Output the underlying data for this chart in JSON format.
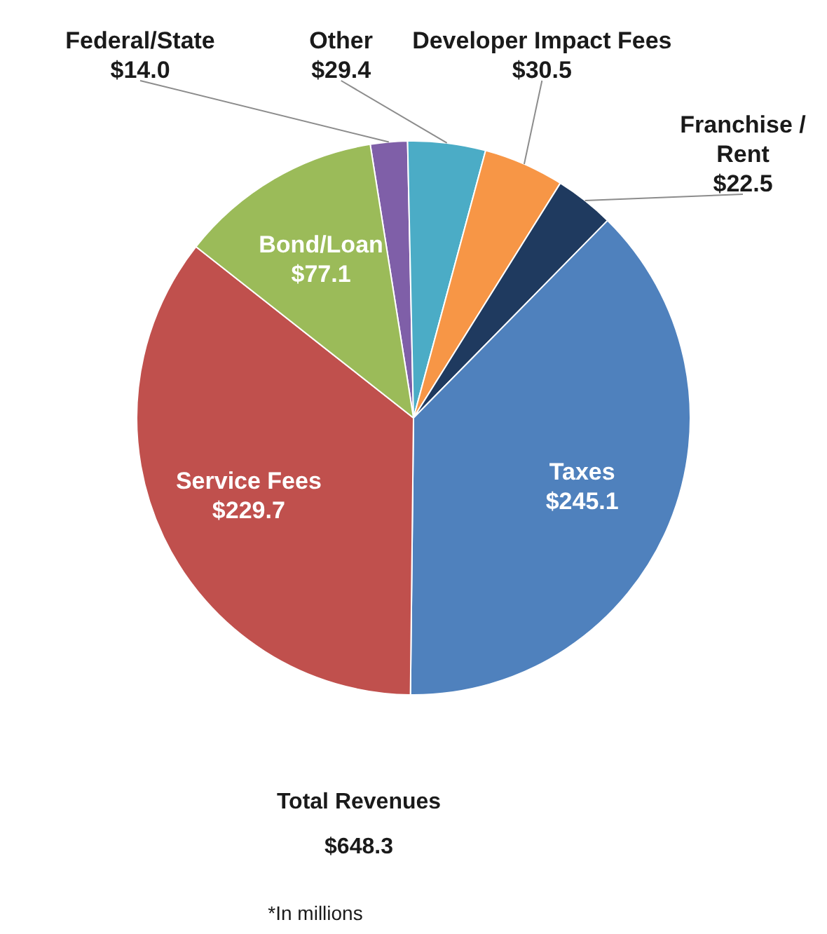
{
  "chart_data": {
    "type": "pie",
    "categories": [
      "Federal/State",
      "Other",
      "Developer Impact Fees",
      "Franchise / Rent",
      "Taxes",
      "Service Fees",
      "Bond/Loan"
    ],
    "values": [
      14.0,
      29.4,
      30.5,
      22.5,
      245.1,
      229.7,
      77.1
    ],
    "colors": [
      "#7f5fa8",
      "#4bacc6",
      "#f79646",
      "#1f3a5f",
      "#4f81bd",
      "#c0504d",
      "#9bbb59"
    ],
    "value_labels": [
      "$14.0",
      "$29.4",
      "$30.5",
      "$22.5",
      "$245.1",
      "$229.7",
      "$77.1"
    ],
    "annotations": [
      "Total Revenues",
      "$648.3",
      "*In millions"
    ]
  }
}
